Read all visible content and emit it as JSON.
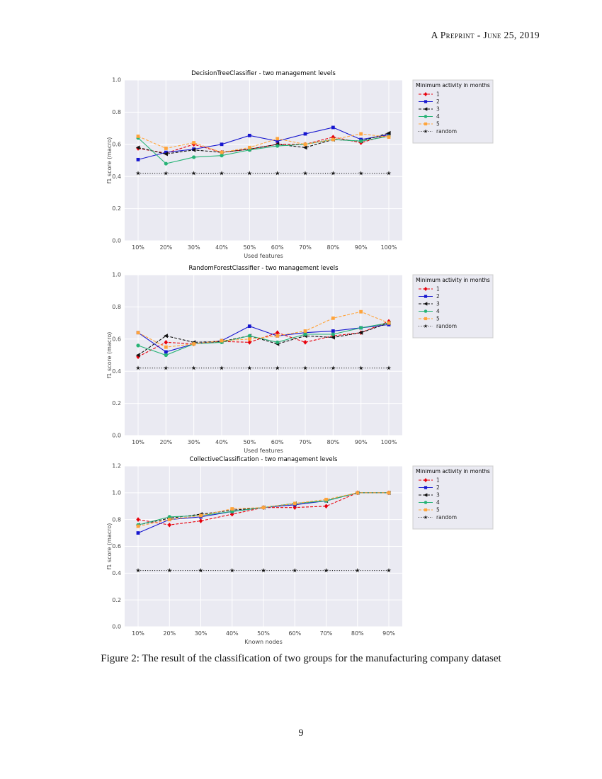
{
  "page": {
    "header": "A Preprint - June 25, 2019",
    "caption": "Figure 2: The result of the classification of two groups for the manufacturing company dataset",
    "page_number": "9"
  },
  "theme": {
    "plot_bg": "#eaeaf2",
    "grid": "#ffffff",
    "text": "#444444",
    "legend_bg": "#eaeaf2",
    "legend_border": "#cccccc",
    "series_colors": {
      "1": "#e8000b",
      "2": "#1717cf",
      "3": "#111111",
      "4": "#27b376",
      "5": "#ffa43b",
      "random": "#111111"
    }
  },
  "chart_data": [
    {
      "type": "line",
      "title": "DecisionTreeClassifier - two management levels",
      "xlabel": "Used features",
      "ylabel": "f1 score (macro)",
      "legend_title": "Minimum activity in months",
      "legend_position": "right",
      "grid": true,
      "categories": [
        "10%",
        "20%",
        "30%",
        "40%",
        "50%",
        "60%",
        "70%",
        "80%",
        "90%",
        "100%"
      ],
      "ylim": [
        0.0,
        1.0
      ],
      "yticks": [
        0.0,
        0.2,
        0.4,
        0.6,
        0.8,
        1.0
      ],
      "series": [
        {
          "name": "1",
          "color": "#e8000b",
          "marker": "diamond",
          "linestyle": "dashed",
          "values": [
            0.575,
            0.545,
            0.6,
            0.55,
            0.57,
            0.6,
            0.6,
            0.645,
            0.61,
            0.66
          ]
        },
        {
          "name": "2",
          "color": "#1717cf",
          "marker": "square",
          "linestyle": "solid",
          "values": [
            0.505,
            0.55,
            0.57,
            0.6,
            0.655,
            0.62,
            0.665,
            0.705,
            0.63,
            0.66
          ]
        },
        {
          "name": "3",
          "color": "#111111",
          "marker": "triangle-left",
          "linestyle": "dashed",
          "values": [
            0.58,
            0.54,
            0.565,
            0.55,
            0.57,
            0.6,
            0.58,
            0.63,
            0.62,
            0.67
          ]
        },
        {
          "name": "4",
          "color": "#27b376",
          "marker": "circle",
          "linestyle": "solid",
          "values": [
            0.64,
            0.48,
            0.52,
            0.53,
            0.565,
            0.59,
            0.6,
            0.63,
            0.62,
            0.65
          ]
        },
        {
          "name": "5",
          "color": "#ffa43b",
          "marker": "square",
          "linestyle": "dashed",
          "values": [
            0.65,
            0.575,
            0.61,
            0.55,
            0.58,
            0.635,
            0.6,
            0.63,
            0.665,
            0.645
          ]
        },
        {
          "name": "random",
          "color": "#111111",
          "marker": "star",
          "linestyle": "dotted",
          "values": [
            0.42,
            0.42,
            0.42,
            0.42,
            0.42,
            0.42,
            0.42,
            0.42,
            0.42,
            0.42
          ]
        }
      ]
    },
    {
      "type": "line",
      "title": "RandomForestClassifier - two management levels",
      "xlabel": "Used features",
      "ylabel": "f1 score (macro)",
      "legend_title": "Minimum activity in months",
      "legend_position": "right",
      "grid": true,
      "categories": [
        "10%",
        "20%",
        "30%",
        "40%",
        "50%",
        "60%",
        "70%",
        "80%",
        "90%",
        "100%"
      ],
      "ylim": [
        0.0,
        1.0
      ],
      "yticks": [
        0.0,
        0.2,
        0.4,
        0.6,
        0.8,
        1.0
      ],
      "series": [
        {
          "name": "1",
          "color": "#e8000b",
          "marker": "diamond",
          "linestyle": "dashed",
          "values": [
            0.49,
            0.58,
            0.57,
            0.585,
            0.58,
            0.64,
            0.58,
            0.62,
            0.64,
            0.71
          ]
        },
        {
          "name": "2",
          "color": "#1717cf",
          "marker": "square",
          "linestyle": "solid",
          "values": [
            0.64,
            0.52,
            0.57,
            0.59,
            0.68,
            0.62,
            0.64,
            0.65,
            0.67,
            0.69
          ]
        },
        {
          "name": "3",
          "color": "#111111",
          "marker": "triangle-left",
          "linestyle": "dashed",
          "values": [
            0.5,
            0.62,
            0.58,
            0.585,
            0.62,
            0.57,
            0.62,
            0.61,
            0.64,
            0.7
          ]
        },
        {
          "name": "4",
          "color": "#27b376",
          "marker": "circle",
          "linestyle": "solid",
          "values": [
            0.56,
            0.5,
            0.57,
            0.58,
            0.62,
            0.58,
            0.63,
            0.63,
            0.67,
            0.7
          ]
        },
        {
          "name": "5",
          "color": "#ffa43b",
          "marker": "square",
          "linestyle": "dashed",
          "values": [
            0.64,
            0.55,
            0.57,
            0.59,
            0.6,
            0.62,
            0.65,
            0.73,
            0.77,
            0.7
          ]
        },
        {
          "name": "random",
          "color": "#111111",
          "marker": "star",
          "linestyle": "dotted",
          "values": [
            0.42,
            0.42,
            0.42,
            0.42,
            0.42,
            0.42,
            0.42,
            0.42,
            0.42,
            0.42
          ]
        }
      ]
    },
    {
      "type": "line",
      "title": "CollectiveClassification - two management levels",
      "xlabel": "Known nodes",
      "ylabel": "f1 score (macro)",
      "legend_title": "Minimum activity in months",
      "legend_position": "right",
      "grid": true,
      "categories": [
        "10%",
        "20%",
        "30%",
        "40%",
        "50%",
        "60%",
        "70%",
        "80%",
        "90%"
      ],
      "ylim": [
        0.0,
        1.2
      ],
      "yticks": [
        0.0,
        0.2,
        0.4,
        0.6,
        0.8,
        1.0,
        1.2
      ],
      "series": [
        {
          "name": "1",
          "color": "#e8000b",
          "marker": "diamond",
          "linestyle": "dashed",
          "values": [
            0.8,
            0.76,
            0.79,
            0.84,
            0.89,
            0.89,
            0.9,
            1.0,
            1.0
          ]
        },
        {
          "name": "2",
          "color": "#1717cf",
          "marker": "square",
          "linestyle": "solid",
          "values": [
            0.7,
            0.8,
            0.82,
            0.86,
            0.89,
            0.91,
            0.94,
            1.0,
            1.0
          ]
        },
        {
          "name": "3",
          "color": "#111111",
          "marker": "triangle-left",
          "linestyle": "dashed",
          "values": [
            0.76,
            0.81,
            0.84,
            0.87,
            0.89,
            0.92,
            0.94,
            1.0,
            1.0
          ]
        },
        {
          "name": "4",
          "color": "#27b376",
          "marker": "circle",
          "linestyle": "solid",
          "values": [
            0.76,
            0.82,
            0.83,
            0.86,
            0.89,
            0.92,
            0.94,
            1.0,
            1.0
          ]
        },
        {
          "name": "5",
          "color": "#ffa43b",
          "marker": "square",
          "linestyle": "dashed",
          "values": [
            0.75,
            0.8,
            0.83,
            0.88,
            0.89,
            0.92,
            0.95,
            1.0,
            1.0
          ]
        },
        {
          "name": "random",
          "color": "#111111",
          "marker": "star",
          "linestyle": "dotted",
          "values": [
            0.42,
            0.42,
            0.42,
            0.42,
            0.42,
            0.42,
            0.42,
            0.42,
            0.42
          ]
        }
      ]
    }
  ]
}
